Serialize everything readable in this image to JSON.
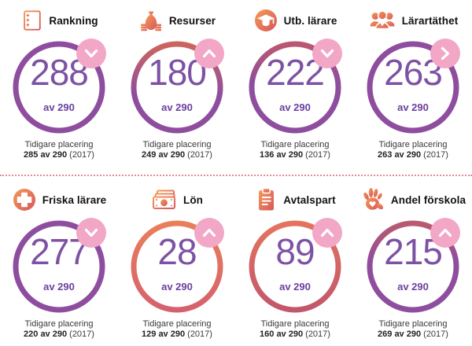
{
  "labels": {
    "previous": "Tidigare placering"
  },
  "colors": {
    "ring_purple": "#8e4d9e",
    "ring_orange": "#ea7e5b",
    "badge_pink": "#f2a7c7",
    "value_purple": "#7d52a4",
    "total_purple": "#6b3fa0",
    "divider_pink": "#e48a95",
    "icon_orange_start": "#f59a57",
    "icon_orange_end": "#d6575c"
  },
  "cards": [
    {
      "title": "Rankning",
      "icon": "list-icon",
      "value": "288",
      "of_total": "av 290",
      "trend": "down",
      "prev_value": "285 av 290",
      "prev_year": "(2017)",
      "ring": {
        "top": "#8e4d9e",
        "bottom": "#8e4d9e",
        "blend": 1
      }
    },
    {
      "title": "Resurser",
      "icon": "money-bag-icon",
      "value": "180",
      "of_total": "av 290",
      "trend": "up",
      "prev_value": "249 av 290",
      "prev_year": "(2017)",
      "ring": {
        "top": "#cd655f",
        "bottom": "#8e4d9e",
        "blend": 0.6
      }
    },
    {
      "title": "Utb. lärare",
      "icon": "graduation-cap-icon",
      "value": "222",
      "of_total": "av 290",
      "trend": "down",
      "prev_value": "136 av 290",
      "prev_year": "(2017)",
      "ring": {
        "top": "#bb5871",
        "bottom": "#8e4d9e",
        "blend": 0.45
      }
    },
    {
      "title": "Lärartäthet",
      "icon": "people-icon",
      "value": "263",
      "of_total": "av 290",
      "trend": "same",
      "prev_value": "263 av 290",
      "prev_year": "(2017)",
      "ring": {
        "top": "#8e4d9e",
        "bottom": "#8e4d9e",
        "blend": 1
      }
    },
    {
      "title": "Friska lärare",
      "icon": "medical-cross-icon",
      "value": "277",
      "of_total": "av 290",
      "trend": "down",
      "prev_value": "220 av 290",
      "prev_year": "(2017)",
      "ring": {
        "top": "#8e4d9e",
        "bottom": "#8e4d9e",
        "blend": 1
      }
    },
    {
      "title": "Lön",
      "icon": "banknote-icon",
      "value": "28",
      "of_total": "av 290",
      "trend": "up",
      "prev_value": "129 av 290",
      "prev_year": "(2017)",
      "ring": {
        "top": "#ea7e5b",
        "bottom": "#d5616e",
        "blend": 1
      }
    },
    {
      "title": "Avtalspart",
      "icon": "clipboard-icon",
      "value": "89",
      "of_total": "av 290",
      "trend": "up",
      "prev_value": "160 av 290",
      "prev_year": "(2017)",
      "ring": {
        "top": "#e4735e",
        "bottom": "#c2566c",
        "blend": 1
      }
    },
    {
      "title": "Andel förskola",
      "icon": "hand-icon",
      "value": "215",
      "of_total": "av 290",
      "trend": "up",
      "prev_value": "269 av 290",
      "prev_year": "(2017)",
      "ring": {
        "top": "#b95a70",
        "bottom": "#8e4d9e",
        "blend": 0.45
      }
    }
  ]
}
